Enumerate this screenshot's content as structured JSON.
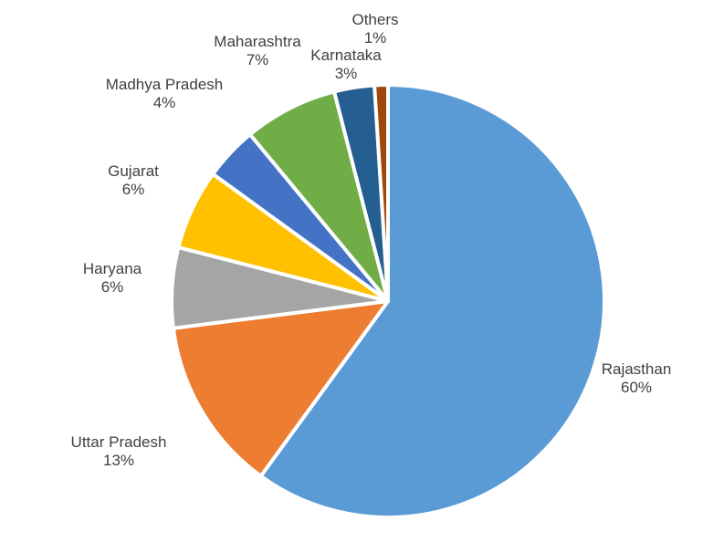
{
  "chart_data": {
    "type": "pie",
    "title": "",
    "start_angle_deg": 0,
    "direction": "clockwise",
    "slices": [
      {
        "label": "Rajasthan",
        "value": 60,
        "value_label": "60%",
        "color": "#5B9BD5"
      },
      {
        "label": "Uttar Pradesh",
        "value": 13,
        "value_label": "13%",
        "color": "#ED7D31"
      },
      {
        "label": "Haryana",
        "value": 6,
        "value_label": "6%",
        "color": "#A5A5A5"
      },
      {
        "label": "Gujarat",
        "value": 6,
        "value_label": "6%",
        "color": "#FFC000"
      },
      {
        "label": "Madhya Pradesh",
        "value": 4,
        "value_label": "4%",
        "color": "#4472C4"
      },
      {
        "label": "Maharashtra",
        "value": 7,
        "value_label": "7%",
        "color": "#70AD47"
      },
      {
        "label": "Karnataka",
        "value": 3,
        "value_label": "3%",
        "color": "#255E91"
      },
      {
        "label": "Others",
        "value": 1,
        "value_label": "1%",
        "color": "#9E480E"
      }
    ],
    "legend": "none",
    "slice_border_color": "#FFFFFF"
  }
}
